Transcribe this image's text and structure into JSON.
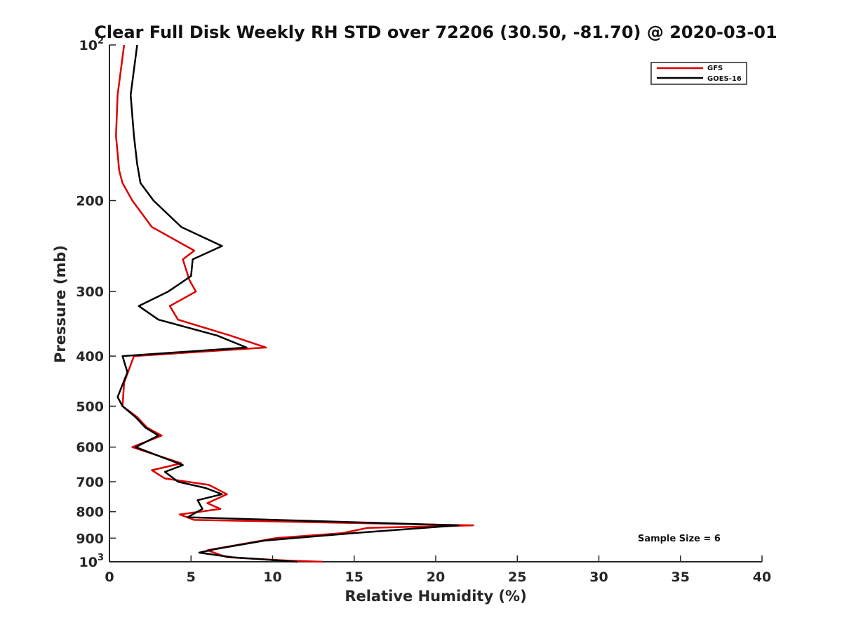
{
  "chart_data": {
    "type": "line",
    "title": "Clear Full Disk Weekly RH STD over 72206 (30.50, -81.70) @ 2020-03-01",
    "xlabel": "Relative Humidity (%)",
    "ylabel": "Pressure (mb)",
    "xlim": [
      0,
      40
    ],
    "ylim": [
      100,
      1000
    ],
    "y_scale": "log",
    "y_reversed": true,
    "grid": false,
    "legend_position": "top-right",
    "x_ticks": [
      "0",
      "5",
      "10",
      "15",
      "20",
      "25",
      "30",
      "35",
      "40"
    ],
    "y_ticks": [
      {
        "value": 100,
        "base": "10",
        "exp": "2"
      },
      {
        "value": 200,
        "label": "200"
      },
      {
        "value": 300,
        "label": "300"
      },
      {
        "value": 400,
        "label": "400"
      },
      {
        "value": 500,
        "label": "500"
      },
      {
        "value": 600,
        "label": "600"
      },
      {
        "value": 700,
        "label": "700"
      },
      {
        "value": 800,
        "label": "800"
      },
      {
        "value": 900,
        "label": "900"
      },
      {
        "value": 1000,
        "base": "10",
        "exp": "3"
      }
    ],
    "annotation": "Sample Size = 6",
    "series": [
      {
        "name": "GFS",
        "color": "#dd0000",
        "points": [
          [
            0.9,
            100
          ],
          [
            0.5,
            125
          ],
          [
            0.4,
            150
          ],
          [
            0.6,
            175
          ],
          [
            0.8,
            185
          ],
          [
            1.4,
            200
          ],
          [
            2.6,
            225
          ],
          [
            5.2,
            250
          ],
          [
            4.5,
            260
          ],
          [
            4.9,
            285
          ],
          [
            5.3,
            300
          ],
          [
            3.7,
            320
          ],
          [
            4.2,
            340
          ],
          [
            7.4,
            365
          ],
          [
            9.6,
            385
          ],
          [
            1.5,
            400
          ],
          [
            0.9,
            450
          ],
          [
            0.8,
            500
          ],
          [
            1.7,
            525
          ],
          [
            2.3,
            550
          ],
          [
            3.2,
            570
          ],
          [
            1.4,
            600
          ],
          [
            3.1,
            625
          ],
          [
            4.4,
            645
          ],
          [
            2.6,
            665
          ],
          [
            3.4,
            690
          ],
          [
            6.1,
            710
          ],
          [
            7.2,
            740
          ],
          [
            6.0,
            770
          ],
          [
            6.8,
            790
          ],
          [
            4.3,
            810
          ],
          [
            5.2,
            830
          ],
          [
            22.3,
            850
          ],
          [
            15.8,
            860
          ],
          [
            14.3,
            880
          ],
          [
            10.2,
            900
          ],
          [
            6.0,
            950
          ],
          [
            7.2,
            980
          ],
          [
            11.0,
            995
          ],
          [
            13.1,
            1000
          ]
        ]
      },
      {
        "name": "GOES-16",
        "color": "#000000",
        "points": [
          [
            1.7,
            100
          ],
          [
            1.3,
            125
          ],
          [
            1.5,
            150
          ],
          [
            1.7,
            170
          ],
          [
            1.9,
            185
          ],
          [
            2.7,
            200
          ],
          [
            4.4,
            225
          ],
          [
            6.9,
            245
          ],
          [
            5.1,
            260
          ],
          [
            5.0,
            280
          ],
          [
            3.6,
            300
          ],
          [
            1.8,
            320
          ],
          [
            3.0,
            340
          ],
          [
            6.6,
            365
          ],
          [
            8.4,
            385
          ],
          [
            0.8,
            400
          ],
          [
            1.1,
            430
          ],
          [
            0.5,
            480
          ],
          [
            0.8,
            500
          ],
          [
            1.6,
            525
          ],
          [
            2.2,
            550
          ],
          [
            3.0,
            570
          ],
          [
            1.6,
            600
          ],
          [
            4.5,
            650
          ],
          [
            3.4,
            670
          ],
          [
            4.2,
            700
          ],
          [
            5.9,
            720
          ],
          [
            6.9,
            740
          ],
          [
            5.4,
            760
          ],
          [
            5.7,
            790
          ],
          [
            4.8,
            820
          ],
          [
            21.4,
            850
          ],
          [
            15.0,
            880
          ],
          [
            9.5,
            910
          ],
          [
            6.5,
            945
          ],
          [
            5.5,
            960
          ],
          [
            7.5,
            980
          ],
          [
            11.5,
            1000
          ]
        ]
      }
    ]
  }
}
